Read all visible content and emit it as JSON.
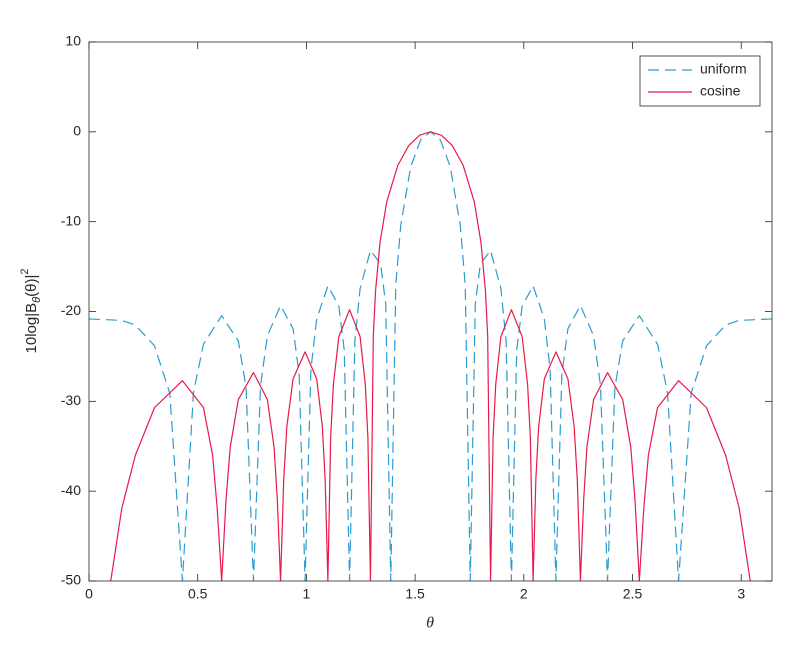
{
  "chart_data": {
    "type": "line",
    "xlabel": "θ",
    "ylabel": [
      "10log|B",
      "θ",
      "(θ)|",
      "2"
    ],
    "xlim": [
      0,
      3.1416
    ],
    "ylim": [
      -50,
      10
    ],
    "xticks": [
      0,
      0.5,
      1,
      1.5,
      2,
      2.5,
      3
    ],
    "yticks": [
      -50,
      -40,
      -30,
      -20,
      -10,
      0,
      10
    ],
    "grid": false,
    "legend_position": "upper-right",
    "series": [
      {
        "name": "uniform",
        "color": "#2b9ccf",
        "line_style": "dashed",
        "x": [
          0,
          0.1509,
          0.2133,
          0.3013,
          0.3718,
          0.4297,
          0.4805,
          0.5265,
          0.6102,
          0.6868,
          0.7227,
          0.7565,
          0.789,
          0.8206,
          0.8811,
          0.9387,
          0.9666,
          0.9939,
          1.0206,
          1.0472,
          1.0988,
          1.1492,
          1.1741,
          1.1986,
          1.2229,
          1.247,
          1.2946,
          1.3415,
          1.3648,
          1.388,
          1.411,
          1.434,
          1.4798,
          1.5253,
          1.5708,
          1.6163,
          1.6618,
          1.7076,
          1.7306,
          1.7536,
          1.7768,
          1.8001,
          1.847,
          1.8946,
          1.9187,
          1.943,
          1.9675,
          1.9924,
          2.0428,
          2.0944,
          2.121,
          2.1477,
          2.175,
          2.2029,
          2.2605,
          2.321,
          2.3526,
          2.3851,
          2.4189,
          2.4548,
          2.5314,
          2.6151,
          2.6611,
          2.7119,
          2.7698,
          2.8403,
          2.9283,
          2.9907,
          3.1416
        ],
        "values": [
          -20.83,
          -20.99,
          -21.51,
          -23.82,
          -29.12,
          -50,
          -29.03,
          -23.64,
          -20.47,
          -23.27,
          -28.48,
          -50,
          -28.2,
          -22.7,
          -19.33,
          -21.91,
          -27.0,
          -50,
          -26.46,
          -20.83,
          -17.15,
          -19.39,
          -24.3,
          -50,
          -23.33,
          -17.45,
          -13.2,
          -14.71,
          -19.16,
          -50,
          -17.04,
          -10.39,
          -3.89,
          -0.905,
          0,
          -0.905,
          -3.89,
          -10.39,
          -17.04,
          -50,
          -19.16,
          -14.71,
          -13.2,
          -17.45,
          -23.33,
          -50,
          -24.3,
          -19.39,
          -17.15,
          -20.83,
          -26.46,
          -50,
          -27.0,
          -21.91,
          -19.33,
          -22.7,
          -28.2,
          -50,
          -28.48,
          -23.27,
          -20.47,
          -23.64,
          -29.03,
          -50,
          -29.12,
          -23.82,
          -21.51,
          -20.99,
          -20.83
        ]
      },
      {
        "name": "cosine",
        "color": "#e8194b",
        "line_style": "solid",
        "x": [
          0.1,
          0.1509,
          0.2133,
          0.3013,
          0.4297,
          0.5265,
          0.5686,
          0.5897,
          0.6102,
          0.6301,
          0.6496,
          0.6868,
          0.7565,
          0.8206,
          0.8513,
          0.8663,
          0.8811,
          0.8957,
          0.9101,
          0.9387,
          0.9939,
          1.0472,
          1.0733,
          1.0862,
          1.0988,
          1.1116,
          1.1242,
          1.1492,
          1.1986,
          1.247,
          1.2708,
          1.2828,
          1.2946,
          1.3078,
          1.3181,
          1.3387,
          1.3694,
          1.4202,
          1.4706,
          1.5208,
          1.5708,
          1.6208,
          1.671,
          1.7214,
          1.7722,
          1.8029,
          1.8235,
          1.8338,
          1.847,
          1.8588,
          1.8708,
          1.8946,
          1.943,
          1.9924,
          2.0174,
          2.03,
          2.0428,
          2.0554,
          2.0683,
          2.0944,
          2.1477,
          2.2029,
          2.2315,
          2.2459,
          2.2605,
          2.2753,
          2.2903,
          2.321,
          2.3851,
          2.4548,
          2.492,
          2.5115,
          2.5314,
          2.5519,
          2.573,
          2.6151,
          2.7119,
          2.8403,
          2.9283,
          2.9907,
          3.0416
        ],
        "values": [
          -50,
          -41.9,
          -36.0,
          -30.7,
          -27.7,
          -30.7,
          -36.0,
          -41.9,
          -50,
          -41.0,
          -35.1,
          -29.8,
          -26.8,
          -29.8,
          -35.1,
          -41.0,
          -50,
          -38.7,
          -32.8,
          -27.5,
          -24.5,
          -27.5,
          -32.8,
          -38.7,
          -50,
          -34.0,
          -28.1,
          -22.8,
          -19.8,
          -22.8,
          -28.1,
          -34.0,
          -50,
          -22.7,
          -17.7,
          -12.3,
          -7.8,
          -3.75,
          -1.53,
          -0.37,
          0,
          -0.37,
          -1.53,
          -3.75,
          -7.8,
          -12.3,
          -17.7,
          -22.7,
          -50,
          -34.0,
          -28.1,
          -22.8,
          -19.8,
          -22.8,
          -28.1,
          -34.0,
          -50,
          -38.7,
          -32.8,
          -27.5,
          -24.5,
          -27.5,
          -32.8,
          -38.7,
          -50,
          -41.0,
          -35.1,
          -29.8,
          -26.8,
          -29.8,
          -35.1,
          -41.0,
          -50,
          -41.9,
          -36.0,
          -30.7,
          -27.7,
          -30.7,
          -36.0,
          -41.9,
          -50
        ]
      }
    ]
  }
}
